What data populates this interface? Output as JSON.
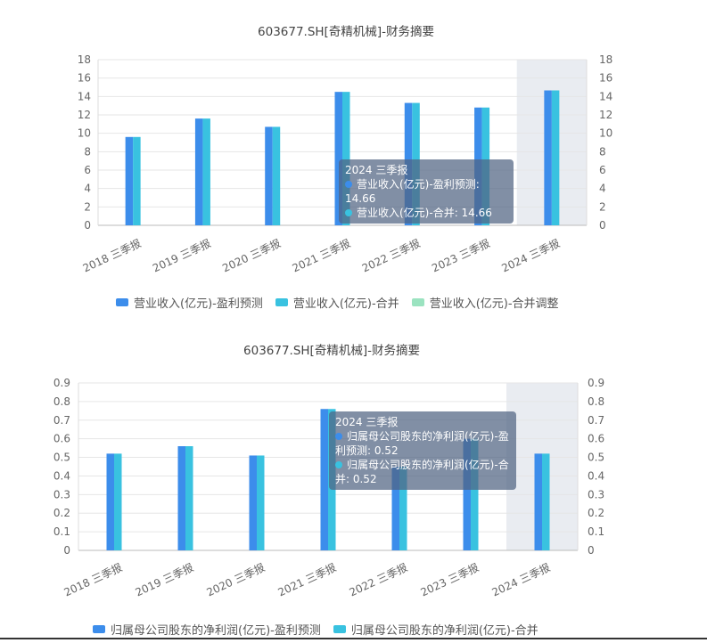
{
  "chart_data": [
    {
      "type": "bar",
      "title": "603677.SH[奇精机械]-财务摘要",
      "categories": [
        "2018 三季报",
        "2019 三季报",
        "2020 三季报",
        "2021 三季报",
        "2022 三季报",
        "2023 三季报",
        "2024 三季报"
      ],
      "series": [
        {
          "name": "营业收入(亿元)-盈利预测",
          "values": [
            9.6,
            11.6,
            10.7,
            14.5,
            13.3,
            12.8,
            14.66
          ],
          "color": "#3C8DEB"
        },
        {
          "name": "营业收入(亿元)-合并",
          "values": [
            9.6,
            11.6,
            10.7,
            14.5,
            13.3,
            12.8,
            14.66
          ],
          "color": "#39C2E0"
        },
        {
          "name": "营业收入(亿元)-合并调整",
          "values": [
            null,
            null,
            null,
            null,
            null,
            null,
            null
          ],
          "color": "#9BE3C0"
        }
      ],
      "ylim": [
        0,
        18
      ],
      "yticks": [
        0,
        2,
        4,
        6,
        8,
        10,
        12,
        14,
        16,
        18
      ],
      "highlight_category": "2024 三季报",
      "tooltip": {
        "title": "2024 三季报",
        "rows": [
          "营业收入(亿元)-盈利预测: 14.66",
          "营业收入(亿元)-合并: 14.66"
        ]
      },
      "legend_position": "bottom"
    },
    {
      "type": "bar",
      "title": "603677.SH[奇精机械]-财务摘要",
      "categories": [
        "2018 三季报",
        "2019 三季报",
        "2020 三季报",
        "2021 三季报",
        "2022 三季报",
        "2023 三季报",
        "2024 三季报"
      ],
      "series": [
        {
          "name": "归属母公司股东的净利润(亿元)-盈利预测",
          "values": [
            0.52,
            0.56,
            0.51,
            0.76,
            0.45,
            0.6,
            0.52
          ],
          "color": "#3C8DEB"
        },
        {
          "name": "归属母公司股东的净利润(亿元)-合并",
          "values": [
            0.52,
            0.56,
            0.51,
            0.76,
            0.45,
            0.6,
            0.52
          ],
          "color": "#39C2E0"
        }
      ],
      "ylim": [
        0,
        0.9
      ],
      "yticks": [
        "0",
        "0.1",
        "0.2",
        "0.3",
        "0.4",
        "0.5",
        "0.6",
        "0.7",
        "0.8",
        "0.9"
      ],
      "highlight_category": "2024 三季报",
      "tooltip": {
        "title": "2024 三季报",
        "rows": [
          "归属母公司股东的净利润(亿元)-盈利预测: 0.52",
          "归属母公司股东的净利润(亿元)-合并: 0.52"
        ]
      },
      "legend_position": "bottom"
    }
  ]
}
